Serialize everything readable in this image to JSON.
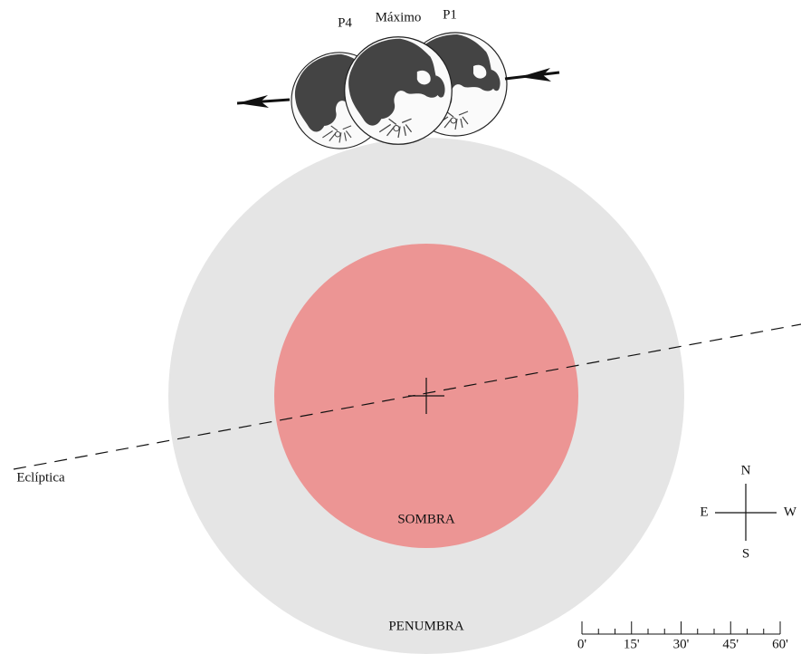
{
  "moons": {
    "p4": "P4",
    "max": "Máximo",
    "p1": "P1"
  },
  "ecliptic": "Eclíptica",
  "umbra": "SOMBRA",
  "penumbra": "PENUMBRA",
  "compass": {
    "n": "N",
    "s": "S",
    "e": "E",
    "w": "W"
  },
  "scale": {
    "labels": [
      "0'",
      "15'",
      "30'",
      "45'",
      "60'"
    ]
  }
}
